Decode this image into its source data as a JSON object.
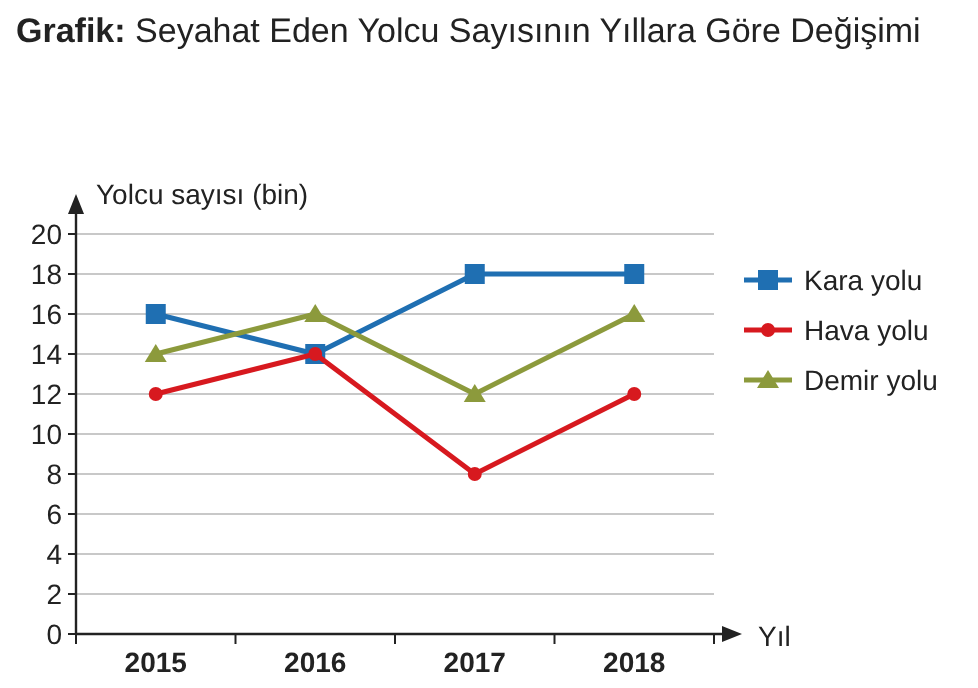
{
  "chart_data": {
    "type": "line",
    "title": "Grafik: Seyahat Eden Yolcu Sayısının Yıllara Göre Değişimi",
    "xlabel": "Yıl",
    "ylabel": "Yolcu sayısı (bin)",
    "categories": [
      "2015",
      "2016",
      "2017",
      "2018"
    ],
    "series": [
      {
        "name": "Kara yolu",
        "color": "#1f6fb2",
        "values": [
          16,
          14,
          18,
          18
        ],
        "marker": "square"
      },
      {
        "name": "Hava yolu",
        "color": "#d7191f",
        "values": [
          12,
          14,
          8,
          12
        ],
        "marker": "circle"
      },
      {
        "name": "Demir yolu",
        "color": "#8c9a3c",
        "values": [
          14,
          16,
          12,
          16
        ],
        "marker": "triangle"
      }
    ],
    "ylim": [
      0,
      20
    ],
    "yticks": [
      0,
      2,
      4,
      6,
      8,
      10,
      12,
      14,
      16,
      18,
      20
    ],
    "grid": "y",
    "legend": "right"
  }
}
